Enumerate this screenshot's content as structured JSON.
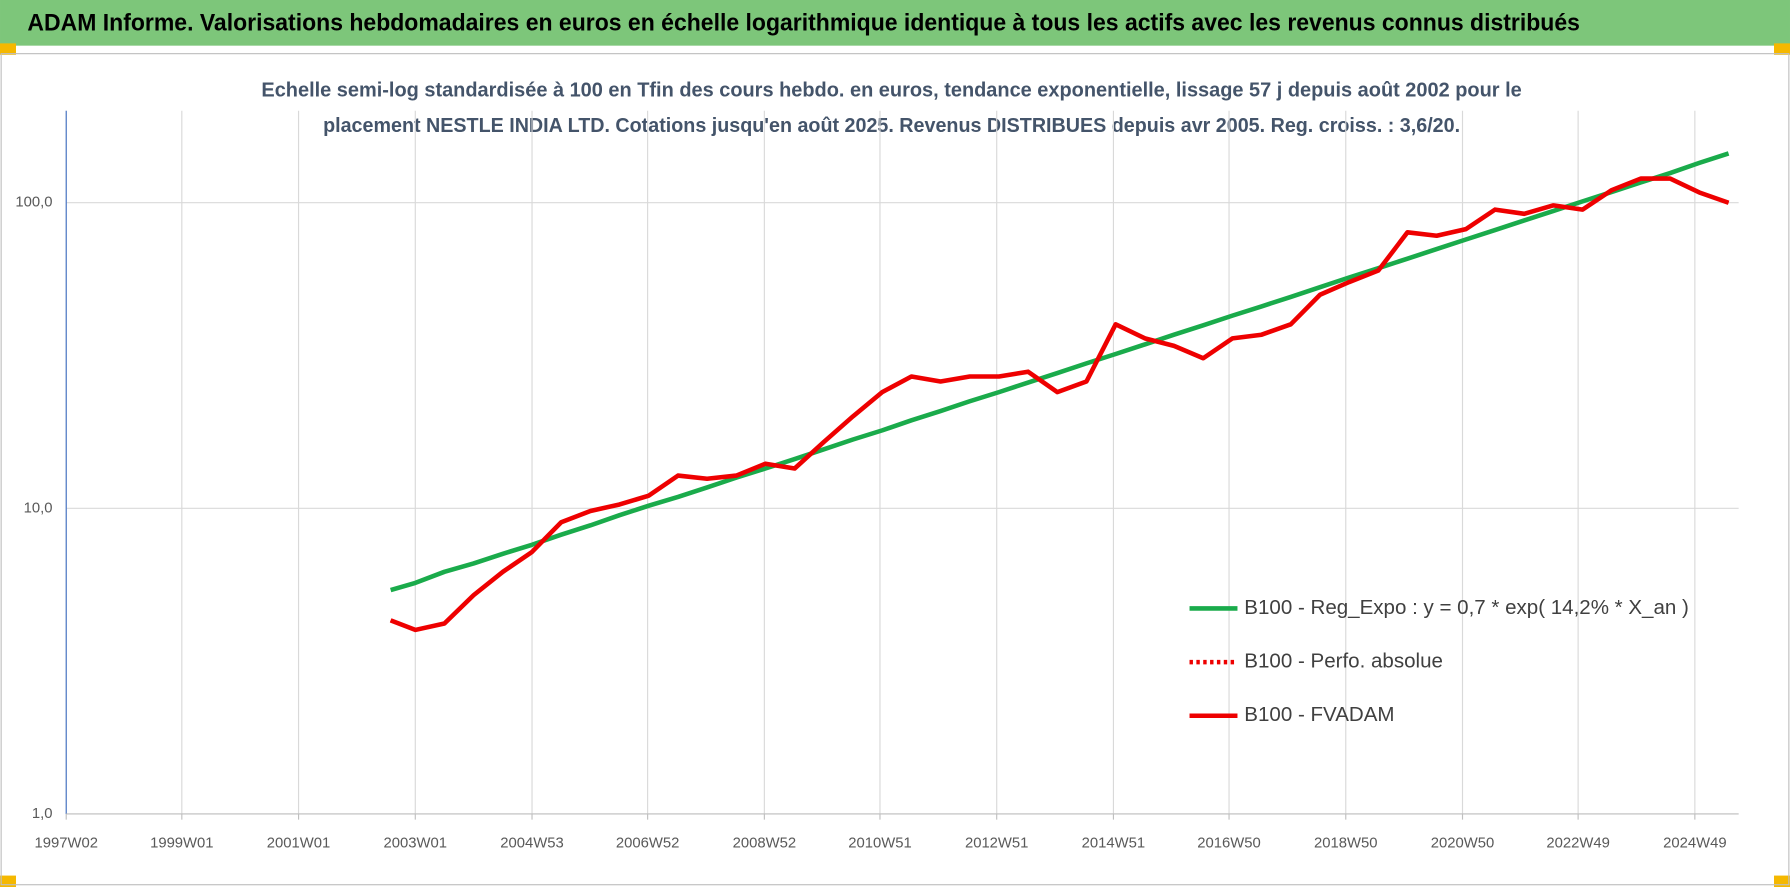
{
  "chart_data": {
    "type": "line",
    "log_scale": true,
    "grid": true,
    "legend": "lower right",
    "title": "ADAM Informe. Valorisations hebdomadaires en euros en échelle logarithmique identique à tous les actifs avec les revenus connus distribués",
    "subtitle": [
      "Echelle semi-log standardisée à 100 en Tfin des cours hebdo. en euros, tendance exponentielle, lissage 57 j depuis août 2002 pour le",
      "placement NESTLE INDIA LTD. Cotations jusqu'en août 2025. Revenus DISTRIBUES depuis avr 2005. Reg. croiss. : 3,6/20."
    ],
    "xlim": [
      "1997W02",
      "2025W36"
    ],
    "xticks": [
      "1997W02",
      "1999W01",
      "2001W01",
      "2003W01",
      "2004W53",
      "2006W52",
      "2008W52",
      "2010W51",
      "2012W51",
      "2014W51",
      "2016W50",
      "2018W50",
      "2020W50",
      "2022W49",
      "2024W49"
    ],
    "ylim": [
      1,
      200
    ],
    "yticks": [
      {
        "value": 1,
        "label": "1,0"
      },
      {
        "value": 10,
        "label": "10,0"
      },
      {
        "value": 100,
        "label": "100,0"
      }
    ],
    "x": [
      "2002W31",
      "2003W01",
      "2003W27",
      "2004W01",
      "2004W27",
      "2005W01",
      "2005W27",
      "2006W01",
      "2006W27",
      "2007W01",
      "2007W27",
      "2008W01",
      "2008W27",
      "2009W01",
      "2009W27",
      "2010W01",
      "2010W27",
      "2011W01",
      "2011W27",
      "2012W01",
      "2012W27",
      "2013W01",
      "2013W27",
      "2014W01",
      "2014W27",
      "2015W01",
      "2015W27",
      "2016W01",
      "2016W27",
      "2017W01",
      "2017W27",
      "2018W01",
      "2018W27",
      "2019W01",
      "2019W27",
      "2020W01",
      "2020W27",
      "2021W01",
      "2021W27",
      "2022W01",
      "2022W27",
      "2023W01",
      "2023W27",
      "2024W01",
      "2024W27",
      "2025W01",
      "2025W27"
    ],
    "series": [
      {
        "name": "B100 - Reg_Expo : y = 0,7 * exp( 14,2% *  X_an )",
        "color": "#1aab4b",
        "style": "solid",
        "values": [
          5.4,
          5.7,
          6.2,
          6.6,
          7.1,
          7.6,
          8.2,
          8.8,
          9.5,
          10.2,
          10.9,
          11.7,
          12.6,
          13.5,
          14.5,
          15.6,
          16.8,
          18.0,
          19.4,
          20.8,
          22.4,
          24.0,
          25.8,
          27.7,
          29.8,
          32.0,
          34.4,
          37.0,
          39.7,
          42.7,
          45.8,
          49.2,
          52.9,
          56.9,
          61.1,
          65.6,
          70.5,
          75.8,
          81.4,
          87.5,
          94.0,
          101,
          108.5,
          116.6,
          125,
          135,
          145
        ]
      },
      {
        "name": "B100 - Perfo. absolue",
        "color": "#ee0000",
        "style": "dotted",
        "values": [
          4.3,
          4.0,
          4.2,
          5.2,
          6.2,
          7.2,
          9.0,
          9.8,
          10.3,
          11.0,
          12.8,
          12.5,
          12.8,
          14.0,
          13.5,
          16.5,
          20,
          24,
          27,
          26,
          27,
          27,
          28,
          24,
          26,
          40,
          36,
          34,
          31,
          36,
          37,
          40,
          50,
          55,
          60,
          80,
          78,
          82,
          95,
          92,
          98,
          95,
          110,
          120,
          120,
          108,
          100
        ]
      },
      {
        "name": "B100 - FVADAM",
        "color": "#ee0000",
        "style": "solid",
        "values": [
          4.3,
          4.0,
          4.2,
          5.2,
          6.2,
          7.2,
          9.0,
          9.8,
          10.3,
          11.0,
          12.8,
          12.5,
          12.8,
          14.0,
          13.5,
          16.5,
          20,
          24,
          27,
          26,
          27,
          27,
          28,
          24,
          26,
          40,
          36,
          34,
          31,
          36,
          37,
          40,
          50,
          55,
          60,
          80,
          78,
          82,
          95,
          92,
          98,
          95,
          110,
          120,
          120,
          108,
          100
        ]
      }
    ]
  }
}
